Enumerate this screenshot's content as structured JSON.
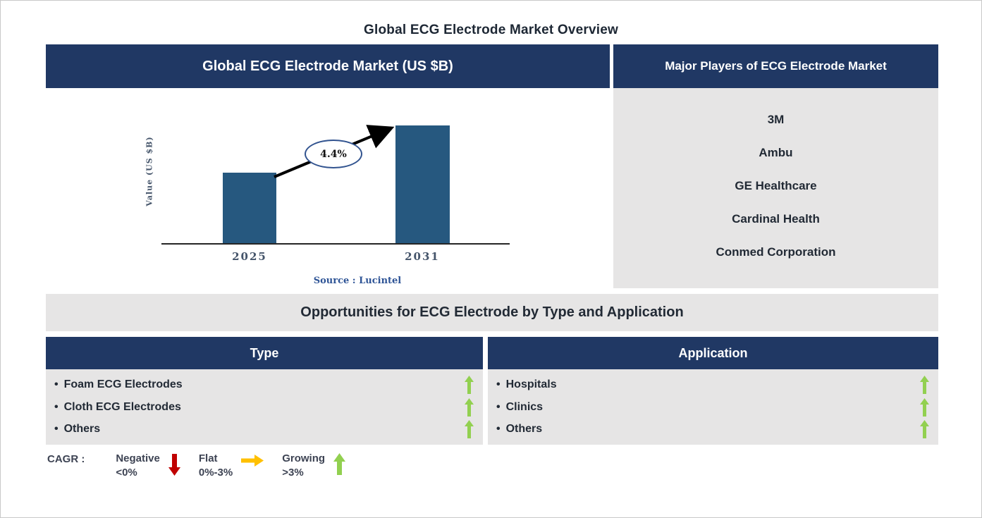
{
  "page": {
    "title": "Global ECG Electrode Market Overview"
  },
  "chart_panel": {
    "header": "Global ECG Electrode Market (US $B)"
  },
  "chart_data": {
    "type": "bar",
    "title": "Global ECG Electrode Market (US $B)",
    "categories": [
      "2025",
      "2031"
    ],
    "values_relative": [
      0.6,
      1.0
    ],
    "ylabel": "Value (US $B)",
    "xlabel": "",
    "annotation": "4.4%",
    "grid": false,
    "legend_position": "none",
    "source": "Source : Lucintel",
    "bar_color": "#26587F"
  },
  "players_panel": {
    "header": "Major Players of ECG Electrode Market",
    "players": [
      "3M",
      "Ambu",
      "GE Healthcare",
      "Cardinal Health",
      "Conmed Corporation"
    ]
  },
  "opportunities": {
    "title": "Opportunities for ECG Electrode by Type and Application",
    "bullet": "•",
    "type_panel": {
      "header": "Type",
      "items": [
        {
          "label": "Foam ECG Electrodes",
          "trend": "growing"
        },
        {
          "label": "Cloth ECG Electrodes",
          "trend": "growing"
        },
        {
          "label": "Others",
          "trend": "growing"
        }
      ]
    },
    "application_panel": {
      "header": "Application",
      "items": [
        {
          "label": "Hospitals",
          "trend": "growing"
        },
        {
          "label": "Clinics",
          "trend": "growing"
        },
        {
          "label": "Others",
          "trend": "growing"
        }
      ]
    }
  },
  "legend": {
    "label": "CAGR :",
    "entries": [
      {
        "name": "Negative",
        "range": "<0%",
        "direction": "down",
        "color": "#C00000"
      },
      {
        "name": "Flat",
        "range": "0%-3%",
        "direction": "right",
        "color": "#FFC000"
      },
      {
        "name": "Growing",
        "range": ">3%",
        "direction": "up",
        "color": "#92D050"
      }
    ]
  },
  "colors": {
    "navy_header": "#203864",
    "panel_gray": "#E6E5E5",
    "bar_blue": "#26587F",
    "dark_text": "#222A35",
    "axis_text": "#44546A",
    "source_blue": "#2E5496",
    "negative_red": "#C00000",
    "flat_yellow": "#FFC000",
    "growing_green": "#92D050"
  }
}
